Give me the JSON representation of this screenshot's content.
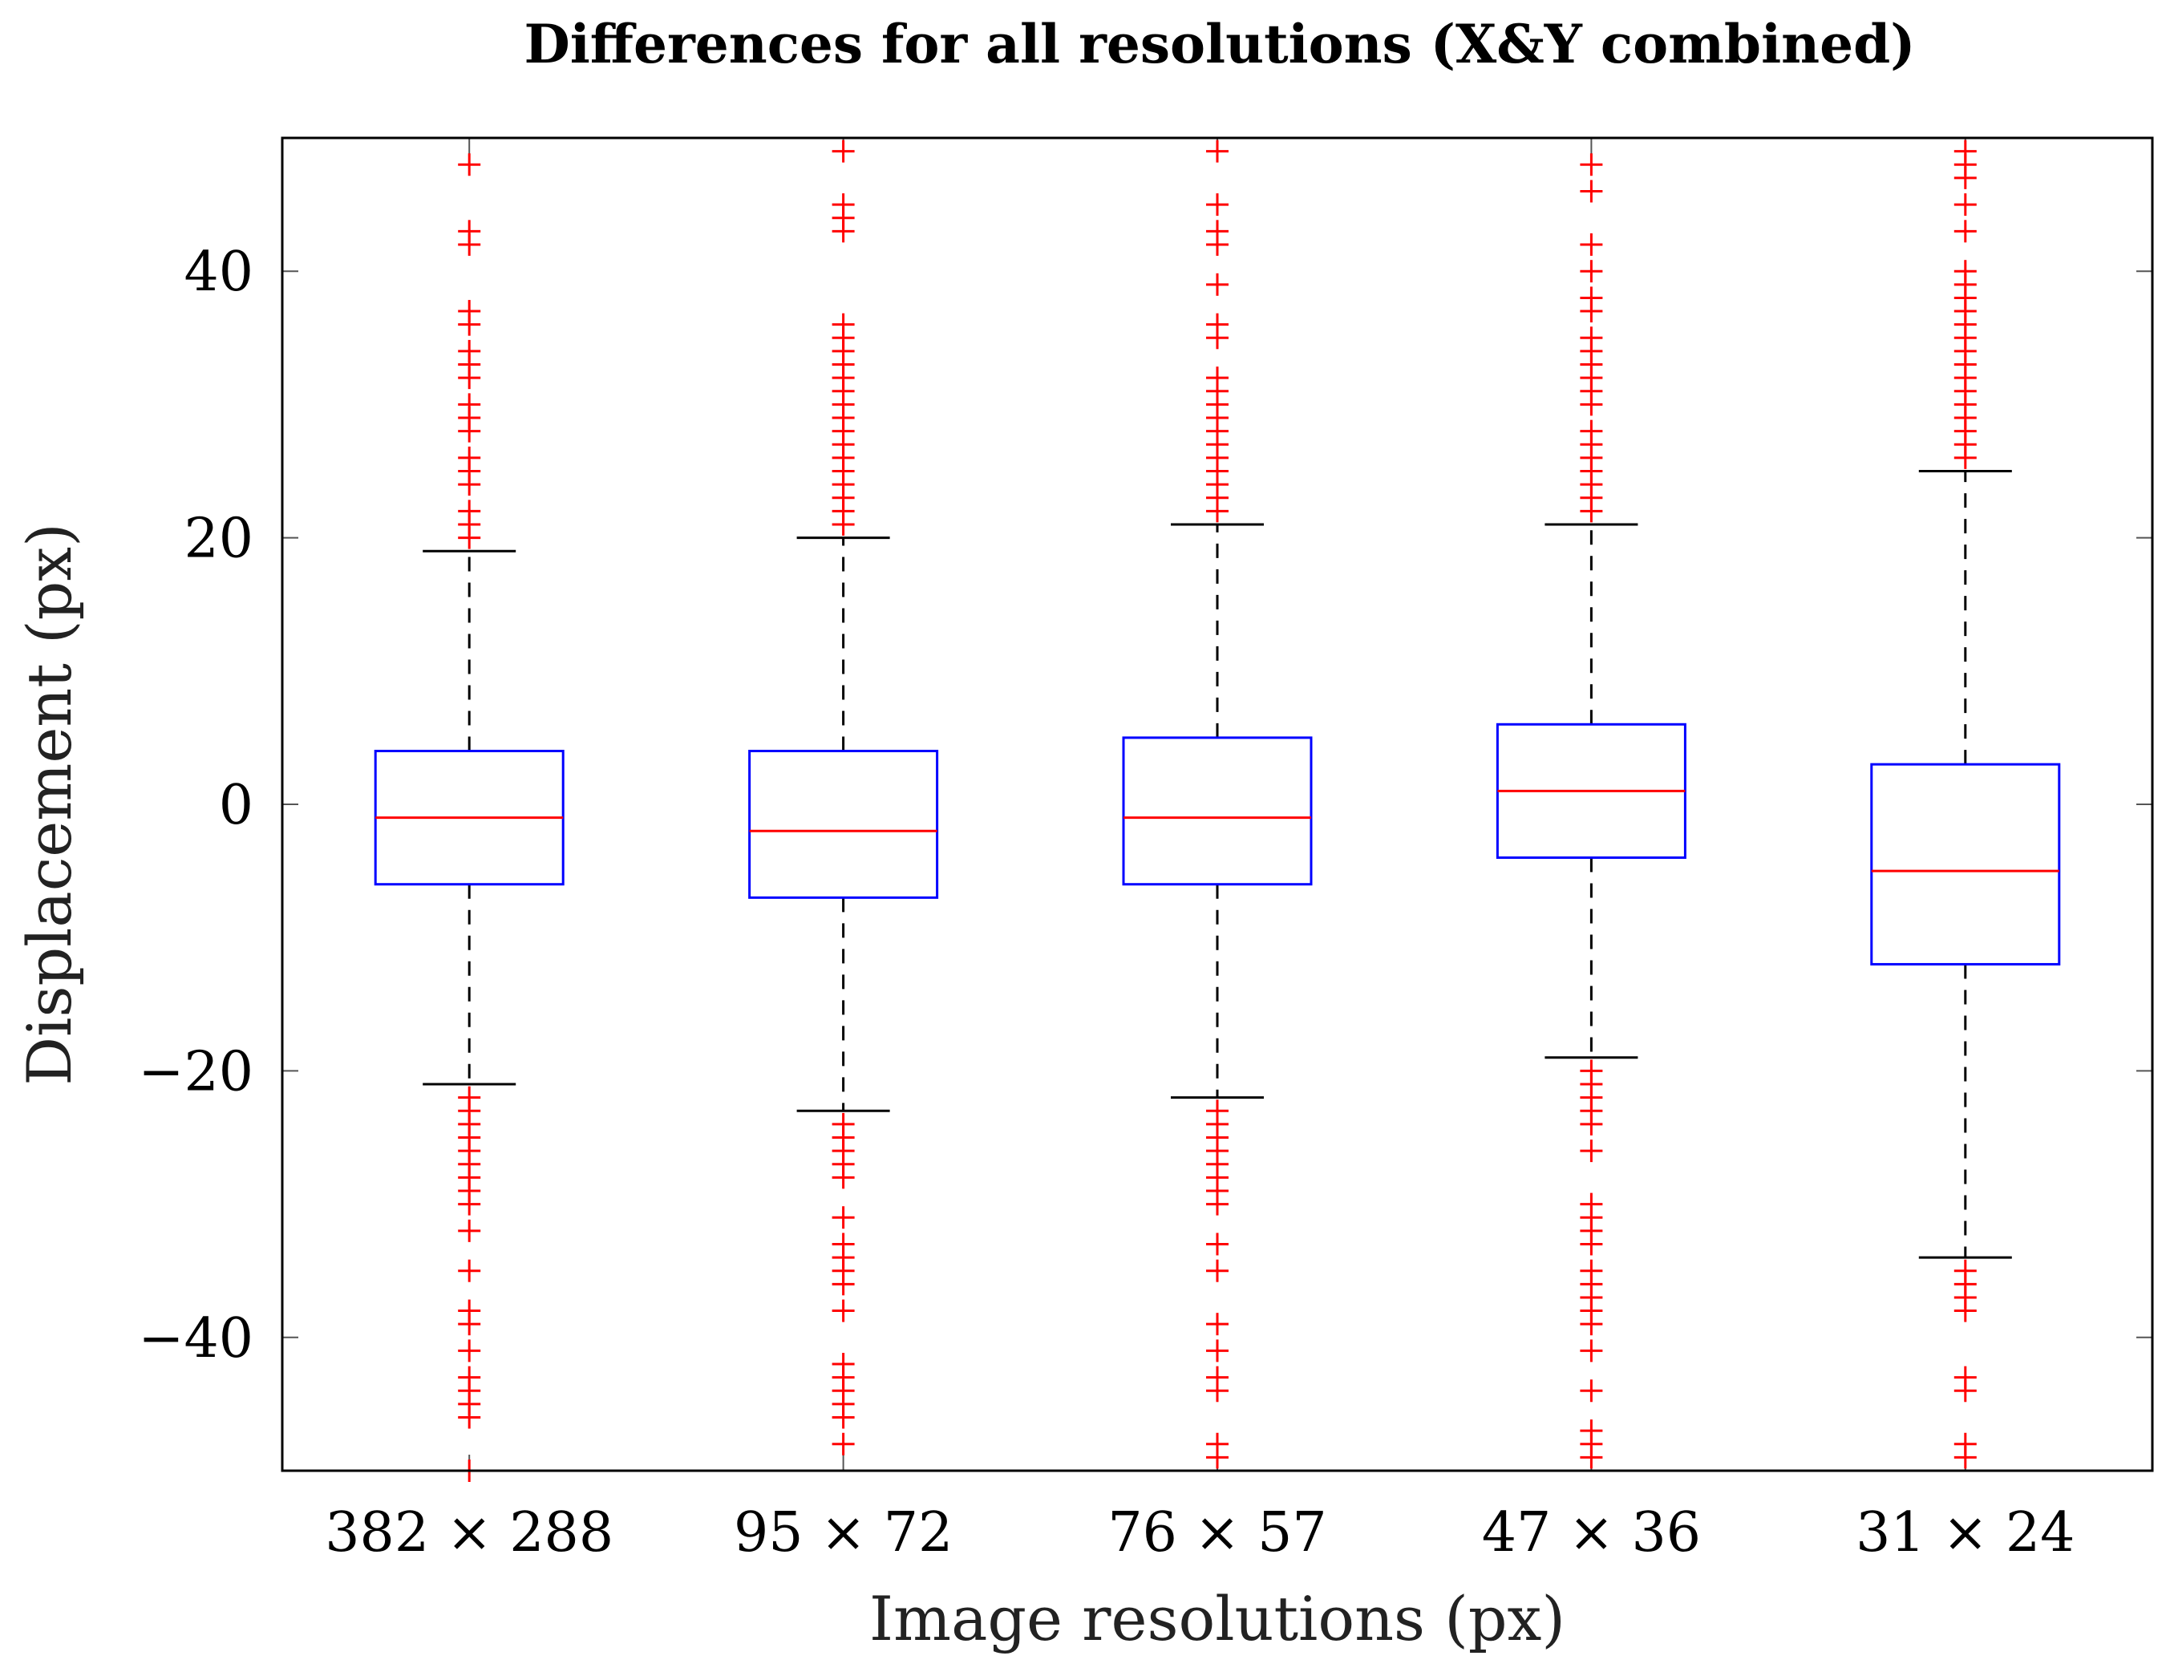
{
  "chart_data": {
    "type": "boxplot",
    "title": "Differences for all resolutions (X&Y combined)",
    "xlabel": "Image resolutions (px)",
    "ylabel": "Displacement (px)",
    "ylim": [
      -50,
      50
    ],
    "yticks": [
      -40,
      -20,
      0,
      20,
      40
    ],
    "ytick_labels": [
      "−40",
      "−20",
      "0",
      "20",
      "40"
    ],
    "grid": false,
    "colors": {
      "box": "#0000ff",
      "median": "#ff0000",
      "whisker": "#000000",
      "outlier": "#ff0000"
    },
    "categories": [
      "382 × 288",
      "95 × 72",
      "76 × 57",
      "47 × 36",
      "31 × 24"
    ],
    "boxes": [
      {
        "median": -1,
        "q1": -6,
        "q3": 4,
        "whisker_low": -21,
        "whisker_high": 19,
        "outliers": [
          48,
          43,
          42,
          37,
          36,
          34,
          33,
          32,
          30,
          29,
          28,
          26,
          25,
          24,
          22,
          21,
          20,
          -22,
          -23,
          -24,
          -25,
          -26,
          -27,
          -28,
          -29,
          -30,
          -32,
          -35,
          -38,
          -39,
          -41,
          -43,
          -44,
          -45,
          -46,
          -50
        ]
      },
      {
        "median": -2,
        "q1": -7,
        "q3": 4,
        "whisker_low": -23,
        "whisker_high": 20,
        "outliers": [
          49,
          45,
          44,
          43,
          36,
          35,
          34,
          33,
          32,
          31,
          30,
          29,
          28,
          27,
          26,
          25,
          24,
          23,
          22,
          21,
          -24,
          -25,
          -26,
          -27,
          -28,
          -31,
          -33,
          -34,
          -35,
          -36,
          -38,
          -42,
          -43,
          -44,
          -45,
          -46,
          -48
        ]
      },
      {
        "median": -1,
        "q1": -6,
        "q3": 5,
        "whisker_low": -22,
        "whisker_high": 21,
        "outliers": [
          49,
          45,
          43,
          42,
          39,
          36,
          35,
          32,
          31,
          30,
          29,
          28,
          27,
          26,
          25,
          24,
          23,
          22,
          -23,
          -24,
          -25,
          -26,
          -27,
          -28,
          -29,
          -30,
          -33,
          -35,
          -39,
          -41,
          -43,
          -44,
          -48,
          -49
        ]
      },
      {
        "median": 1,
        "q1": -4,
        "q3": 6,
        "whisker_low": -19,
        "whisker_high": 21,
        "outliers": [
          48,
          46,
          42,
          40,
          38,
          37,
          35,
          34,
          33,
          32,
          31,
          30,
          28,
          27,
          26,
          25,
          24,
          23,
          22,
          -20,
          -21,
          -22,
          -23,
          -24,
          -26,
          -30,
          -31,
          -32,
          -33,
          -35,
          -36,
          -37,
          -38,
          -39,
          -41,
          -44,
          -47,
          -48,
          -49
        ]
      },
      {
        "median": -5,
        "q1": -12,
        "q3": 3,
        "whisker_low": -34,
        "whisker_high": 25,
        "outliers": [
          49,
          48,
          47,
          45,
          43,
          40,
          39,
          38,
          37,
          36,
          35,
          34,
          33,
          32,
          31,
          30,
          29,
          28,
          27,
          26,
          -35,
          -36,
          -37,
          -38,
          -43,
          -44,
          -48,
          -49
        ]
      }
    ]
  }
}
